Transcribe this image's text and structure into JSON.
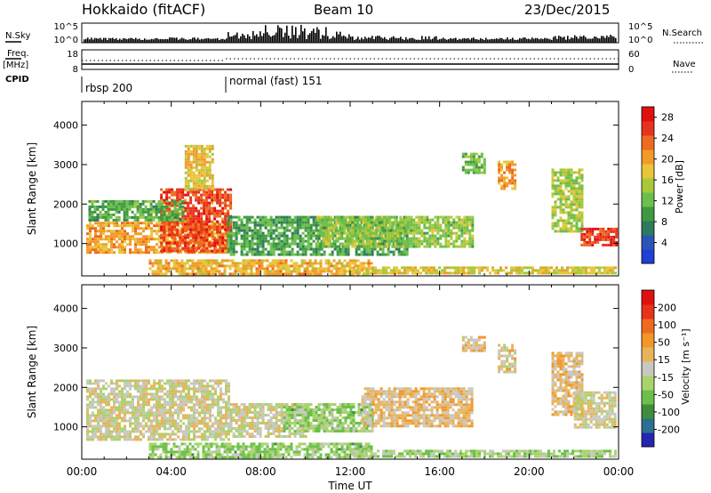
{
  "header": {
    "title": "Hokkaido (fitACF)",
    "beam": "Beam 10",
    "date": "23/Dec/2015"
  },
  "colors": {
    "power": [
      "#1f3fd6",
      "#2a55b5",
      "#2e7a5e",
      "#3f9a3f",
      "#6cbf4d",
      "#a8c83a",
      "#e8c53a",
      "#f39a2a",
      "#ee6a1e",
      "#e8331c",
      "#e01010"
    ],
    "velocity": [
      "#2525b0",
      "#2d6f8f",
      "#3e8c3e",
      "#6cc04a",
      "#a8d46c",
      "#c8c8c0",
      "#e8b45a",
      "#f2962a",
      "#ee6a1e",
      "#e8331c",
      "#e01010"
    ]
  },
  "chart_data": [
    {
      "type": "line",
      "name": "noise-panel",
      "left_label": "N.Sky",
      "right_label": "N.Search",
      "left_ticks": [
        "10^5",
        "10^0"
      ],
      "right_ticks": [
        "10^5",
        "10^0"
      ],
      "xlim": [
        "00:00",
        "24:00"
      ]
    },
    {
      "type": "line",
      "name": "frequency-nave-panel",
      "left_label": "Freq.",
      "left_unit": "[MHz]",
      "right_label": "Nave",
      "left_ticks": [
        "18",
        "8"
      ],
      "right_ticks": [
        "60",
        "0"
      ]
    },
    {
      "type": "table",
      "name": "cpid-panel",
      "label": "CPID",
      "programs": [
        {
          "label": "rbsp 200",
          "start": "00:00",
          "end": "06:30"
        },
        {
          "label": "normal (fast) 151",
          "start": "06:30",
          "end": "24:00"
        }
      ]
    },
    {
      "type": "heatmap",
      "name": "power-panel",
      "ylabel": "Slant Range [km]",
      "yticks": [
        1000,
        2000,
        3000,
        4000
      ],
      "ylim": [
        180,
        4600
      ],
      "colorbar": {
        "label": "Power [dB]",
        "ticks": [
          4,
          8,
          12,
          16,
          20,
          24,
          28
        ],
        "range": [
          0,
          30
        ]
      },
      "regions": [
        {
          "t0": 0.2,
          "t1": 6.4,
          "r0": 750,
          "r1": 1550,
          "v": 20
        },
        {
          "t0": 3.5,
          "t1": 6.7,
          "r0": 800,
          "r1": 2400,
          "v": 25
        },
        {
          "t0": 4.6,
          "t1": 5.8,
          "r0": 2400,
          "r1": 3500,
          "v": 18
        },
        {
          "t0": 0.3,
          "t1": 4.5,
          "r0": 1600,
          "r1": 2100,
          "v": 11
        },
        {
          "t0": 3.0,
          "t1": 13.0,
          "r0": 260,
          "r1": 600,
          "v": 19
        },
        {
          "t0": 6.5,
          "t1": 14.5,
          "r0": 750,
          "r1": 1700,
          "v": 10
        },
        {
          "t0": 10.5,
          "t1": 17.5,
          "r0": 900,
          "r1": 1700,
          "v": 14
        },
        {
          "t0": 12.0,
          "t1": 23.9,
          "r0": 220,
          "r1": 420,
          "v": 17
        },
        {
          "t0": 17.0,
          "t1": 18.0,
          "r0": 2800,
          "r1": 3300,
          "v": 12
        },
        {
          "t0": 18.6,
          "t1": 19.4,
          "r0": 2400,
          "r1": 3100,
          "v": 20
        },
        {
          "t0": 21.0,
          "t1": 22.4,
          "r0": 1300,
          "r1": 2900,
          "v": 15
        },
        {
          "t0": 22.3,
          "t1": 23.9,
          "r0": 950,
          "r1": 1400,
          "v": 26
        }
      ]
    },
    {
      "type": "heatmap",
      "name": "velocity-panel",
      "ylabel": "Slant Range [km]",
      "yticks": [
        1000,
        2000,
        3000,
        4000
      ],
      "ylim": [
        180,
        4600
      ],
      "xlabel": "Time UT",
      "xticks": [
        "00:00",
        "04:00",
        "08:00",
        "12:00",
        "16:00",
        "20:00",
        "00:00"
      ],
      "colorbar": {
        "label": "Velocity [m s⁻¹]",
        "ticks": [
          200,
          100,
          50,
          15,
          -15,
          -50,
          -100,
          -200
        ],
        "range": [
          -250,
          250
        ]
      },
      "regions": [
        {
          "t0": 0.2,
          "t1": 6.6,
          "r0": 700,
          "r1": 2200,
          "v": 0
        },
        {
          "t0": 3.0,
          "t1": 13.0,
          "r0": 260,
          "r1": 600,
          "v": -60
        },
        {
          "t0": 6.5,
          "t1": 10.0,
          "r0": 750,
          "r1": 1600,
          "v": 0
        },
        {
          "t0": 9.0,
          "t1": 13.0,
          "r0": 900,
          "r1": 1600,
          "v": -60
        },
        {
          "t0": 12.5,
          "t1": 17.5,
          "r0": 1000,
          "r1": 2000,
          "v": 40
        },
        {
          "t0": 12.0,
          "t1": 23.9,
          "r0": 220,
          "r1": 420,
          "v": -50
        },
        {
          "t0": 17.0,
          "t1": 18.0,
          "r0": 2900,
          "r1": 3300,
          "v": 30
        },
        {
          "t0": 18.6,
          "t1": 19.4,
          "r0": 2400,
          "r1": 3100,
          "v": 20
        },
        {
          "t0": 21.0,
          "t1": 22.4,
          "r0": 1300,
          "r1": 2900,
          "v": 35
        },
        {
          "t0": 22.0,
          "t1": 23.9,
          "r0": 1000,
          "r1": 1900,
          "v": 0
        }
      ]
    }
  ]
}
